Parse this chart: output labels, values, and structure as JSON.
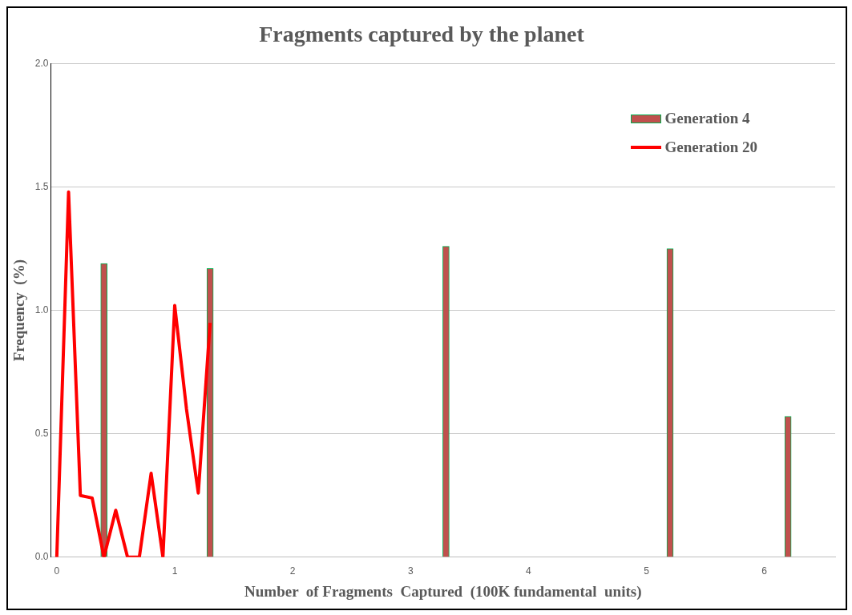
{
  "chart_data": {
    "type": "bar",
    "title": "Fragments captured by the planet",
    "xlabel": "Number  of Fragments  Captured  (100K fundamental  units)",
    "ylabel": "Frequency  (%)",
    "xlim": [
      -0.05,
      6.6
    ],
    "xticks": [
      0,
      1,
      2,
      3,
      4,
      5,
      6
    ],
    "ylim": [
      0,
      2
    ],
    "yticks": [
      {
        "value": 0,
        "label": "0.0"
      },
      {
        "value": 0.5,
        "label": "0.5"
      },
      {
        "value": 1,
        "label": "1.0"
      },
      {
        "value": 1.5,
        "label": "1.5"
      },
      {
        "value": 2,
        "label": "2.0"
      }
    ],
    "grid": "y",
    "legend": "top right",
    "series": [
      {
        "name": "Generation 4",
        "color": "#c0504d",
        "x": [
          0.4,
          1.3,
          3.3,
          5.2,
          6.2
        ],
        "values": [
          1.19,
          1.17,
          1.26,
          1.25,
          0.57
        ]
      },
      {
        "name": "Generation 20",
        "type": "line",
        "color": "#ff0000",
        "x": [
          0,
          0.1,
          0.2,
          0.3,
          0.4,
          0.5,
          0.6,
          0.7,
          0.8,
          0.9,
          1.0,
          1.1,
          1.2,
          1.3
        ],
        "values": [
          0,
          1.48,
          0.25,
          0.24,
          0,
          0.19,
          0,
          0,
          0.34,
          0,
          1.02,
          0.6,
          0.26,
          0.95
        ]
      }
    ]
  }
}
